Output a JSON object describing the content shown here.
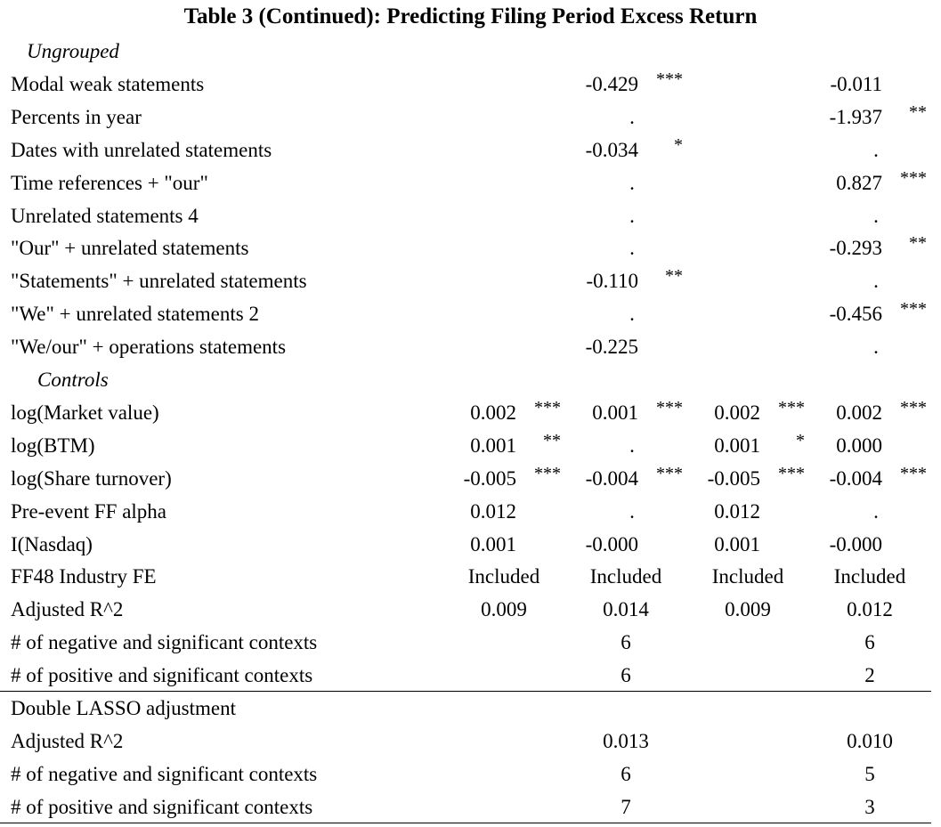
{
  "title": "Table 3 (Continued): Predicting Filing Period Excess Return",
  "rows": [
    {
      "label": "Ungrouped",
      "kind": "section",
      "cells": []
    },
    {
      "label": "Modal weak statements",
      "kind": "coef",
      "cells": [
        null,
        {
          "v": "-0.429",
          "s": "***"
        },
        null,
        {
          "v": "-0.011",
          "s": ""
        }
      ]
    },
    {
      "label": "Percents in year",
      "kind": "coef",
      "cells": [
        null,
        {
          "v": ".",
          "s": ""
        },
        null,
        {
          "v": "-1.937",
          "s": "**"
        }
      ]
    },
    {
      "label": "Dates with unrelated statements",
      "kind": "coef",
      "cells": [
        null,
        {
          "v": "-0.034",
          "s": "*"
        },
        null,
        {
          "v": ".",
          "s": ""
        }
      ]
    },
    {
      "label": "Time references + \"our\"",
      "kind": "coef",
      "cells": [
        null,
        {
          "v": ".",
          "s": ""
        },
        null,
        {
          "v": "0.827",
          "s": "***"
        }
      ]
    },
    {
      "label": "Unrelated statements 4",
      "kind": "coef",
      "cells": [
        null,
        {
          "v": ".",
          "s": ""
        },
        null,
        {
          "v": ".",
          "s": ""
        }
      ]
    },
    {
      "label": "\"Our\" + unrelated statements",
      "kind": "coef",
      "cells": [
        null,
        {
          "v": ".",
          "s": ""
        },
        null,
        {
          "v": "-0.293",
          "s": "**"
        }
      ]
    },
    {
      "label": "\"Statements\" + unrelated statements",
      "kind": "coef",
      "cells": [
        null,
        {
          "v": "-0.110",
          "s": "**"
        },
        null,
        {
          "v": ".",
          "s": ""
        }
      ]
    },
    {
      "label": "\"We\" + unrelated statements 2",
      "kind": "coef",
      "cells": [
        null,
        {
          "v": ".",
          "s": ""
        },
        null,
        {
          "v": "-0.456",
          "s": "***"
        }
      ]
    },
    {
      "label": "\"We/our\" + operations statements",
      "kind": "coef",
      "cells": [
        null,
        {
          "v": "-0.225",
          "s": ""
        },
        null,
        {
          "v": ".",
          "s": ""
        }
      ]
    },
    {
      "label": "Controls",
      "kind": "section controls",
      "cells": []
    },
    {
      "label": "log(Market value)",
      "kind": "coef",
      "cells": [
        {
          "v": "0.002",
          "s": "***"
        },
        {
          "v": "0.001",
          "s": "***"
        },
        {
          "v": "0.002",
          "s": "***"
        },
        {
          "v": "0.002",
          "s": "***"
        }
      ]
    },
    {
      "label": "log(BTM)",
      "kind": "coef",
      "cells": [
        {
          "v": "0.001",
          "s": "**"
        },
        {
          "v": ".",
          "s": ""
        },
        {
          "v": "0.001",
          "s": "*"
        },
        {
          "v": "0.000",
          "s": ""
        }
      ]
    },
    {
      "label": "log(Share turnover)",
      "kind": "coef",
      "cells": [
        {
          "v": "-0.005",
          "s": "***"
        },
        {
          "v": "-0.004",
          "s": "***"
        },
        {
          "v": "-0.005",
          "s": "***"
        },
        {
          "v": "-0.004",
          "s": "***"
        }
      ]
    },
    {
      "label": "Pre-event FF alpha",
      "kind": "coef",
      "cells": [
        {
          "v": "0.012",
          "s": ""
        },
        {
          "v": ".",
          "s": ""
        },
        {
          "v": "0.012",
          "s": ""
        },
        {
          "v": ".",
          "s": ""
        }
      ]
    },
    {
      "label": "I(Nasdaq)",
      "kind": "coef",
      "cells": [
        {
          "v": "0.001",
          "s": ""
        },
        {
          "v": "-0.000",
          "s": ""
        },
        {
          "v": "0.001",
          "s": ""
        },
        {
          "v": "-0.000",
          "s": ""
        }
      ]
    },
    {
      "label": "FF48 Industry FE",
      "kind": "text",
      "cells": [
        {
          "v": "Included"
        },
        {
          "v": "Included"
        },
        {
          "v": "Included"
        },
        {
          "v": "Included"
        }
      ]
    },
    {
      "label": "Adjusted R^2",
      "kind": "text",
      "cells": [
        {
          "v": "0.009"
        },
        {
          "v": "0.014"
        },
        {
          "v": "0.009"
        },
        {
          "v": "0.012"
        }
      ]
    },
    {
      "label": "# of negative and significant contexts",
      "kind": "text",
      "cells": [
        null,
        {
          "v": "6"
        },
        null,
        {
          "v": "6"
        }
      ]
    },
    {
      "label": "# of positive and significant contexts",
      "kind": "text",
      "cells": [
        null,
        {
          "v": "6"
        },
        null,
        {
          "v": "2"
        }
      ]
    },
    {
      "label": "Double LASSO adjustment",
      "kind": "label-only",
      "cells": []
    },
    {
      "label": "Adjusted R^2",
      "kind": "text",
      "cells": [
        null,
        {
          "v": "0.013"
        },
        null,
        {
          "v": "0.010"
        }
      ]
    },
    {
      "label": "# of negative and significant contexts",
      "kind": "text",
      "cells": [
        null,
        {
          "v": "6"
        },
        null,
        {
          "v": "5"
        }
      ]
    },
    {
      "label": "# of positive and significant contexts",
      "kind": "text",
      "cells": [
        null,
        {
          "v": "7"
        },
        null,
        {
          "v": "3"
        }
      ]
    }
  ]
}
